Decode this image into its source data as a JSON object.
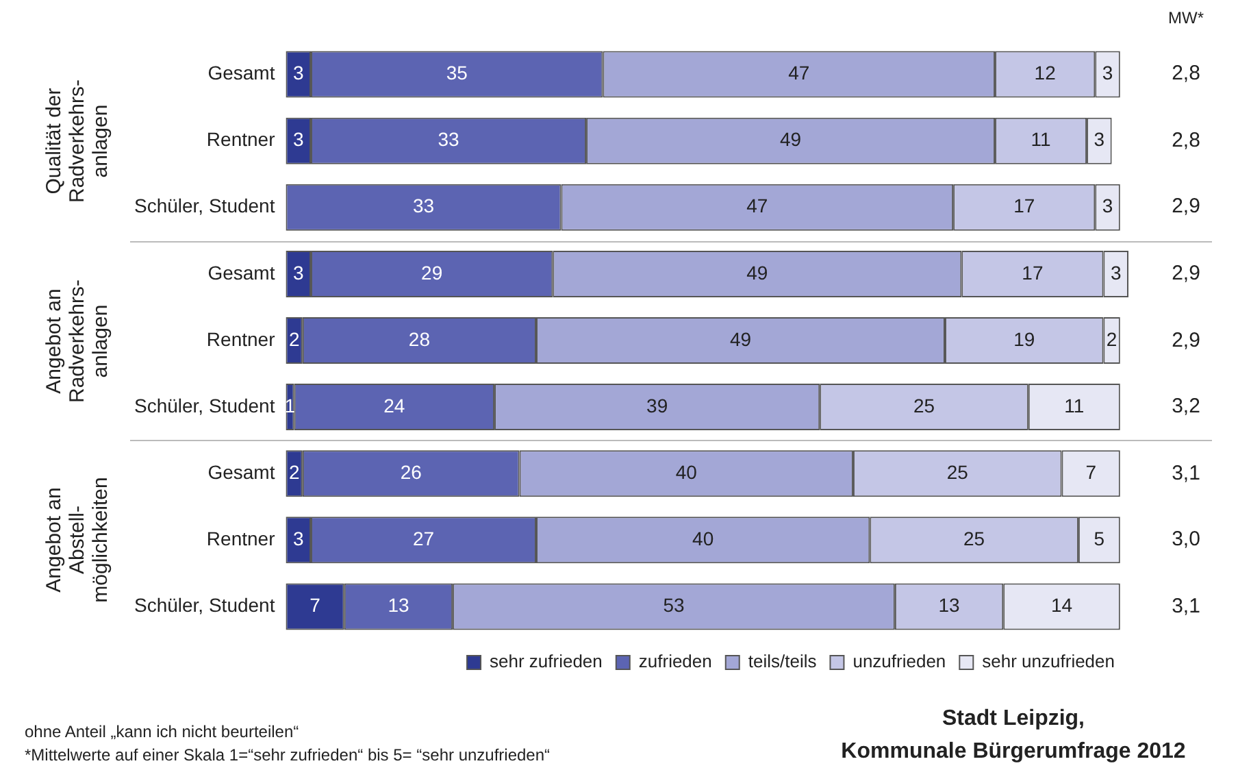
{
  "chart_data": {
    "type": "bar",
    "orientation": "horizontal",
    "stacked": true,
    "data_labels": true,
    "legend": "bottom",
    "tick_labels": "y",
    "grid": false,
    "xlim": [
      0,
      101
    ],
    "categories": [
      "Gesamt",
      "Rentner",
      "Schüler, Student",
      "Gesamt",
      "Rentner",
      "Schüler, Student",
      "Gesamt",
      "Rentner",
      "Schüler, Student"
    ],
    "series": [
      {
        "name": "sehr zufrieden",
        "color": "#2e3a92",
        "values": [
          3,
          3,
          null,
          3,
          2,
          1,
          2,
          3,
          7
        ]
      },
      {
        "name": "zufrieden",
        "color": "#5c64b2",
        "values": [
          35,
          33,
          33,
          29,
          28,
          24,
          26,
          27,
          13
        ]
      },
      {
        "name": "teils/teils",
        "color": "#a3a7d6",
        "values": [
          47,
          49,
          47,
          49,
          49,
          39,
          40,
          40,
          53
        ]
      },
      {
        "name": "unzufrieden",
        "color": "#c4c6e6",
        "values": [
          12,
          11,
          17,
          17,
          19,
          25,
          25,
          25,
          13
        ]
      },
      {
        "name": "sehr unzufrieden",
        "color": "#e6e7f4",
        "values": [
          3,
          3,
          3,
          3,
          2,
          11,
          7,
          5,
          14
        ]
      }
    ],
    "annotations": [
      "Qualität der\nRadverkehrs-\nanlagen",
      "Angebot an\nRadverkehrs-\nanlagen",
      "Angebot an\nAbstell-\nmöglichkeiten",
      "MW*",
      "2,8",
      "2,8",
      "2,9",
      "2,9",
      "2,9",
      "3,2",
      "3,1",
      "3,0",
      "3,1",
      "ohne Anteil „kann ich nicht beurteilen“",
      "*Mittelwerte auf einer Skala 1=“sehr zufrieden“ bis 5= “sehr unzufrieden“",
      "Stadt Leipzig,",
      "Kommunale Bürgerumfrage 2012"
    ]
  }
}
